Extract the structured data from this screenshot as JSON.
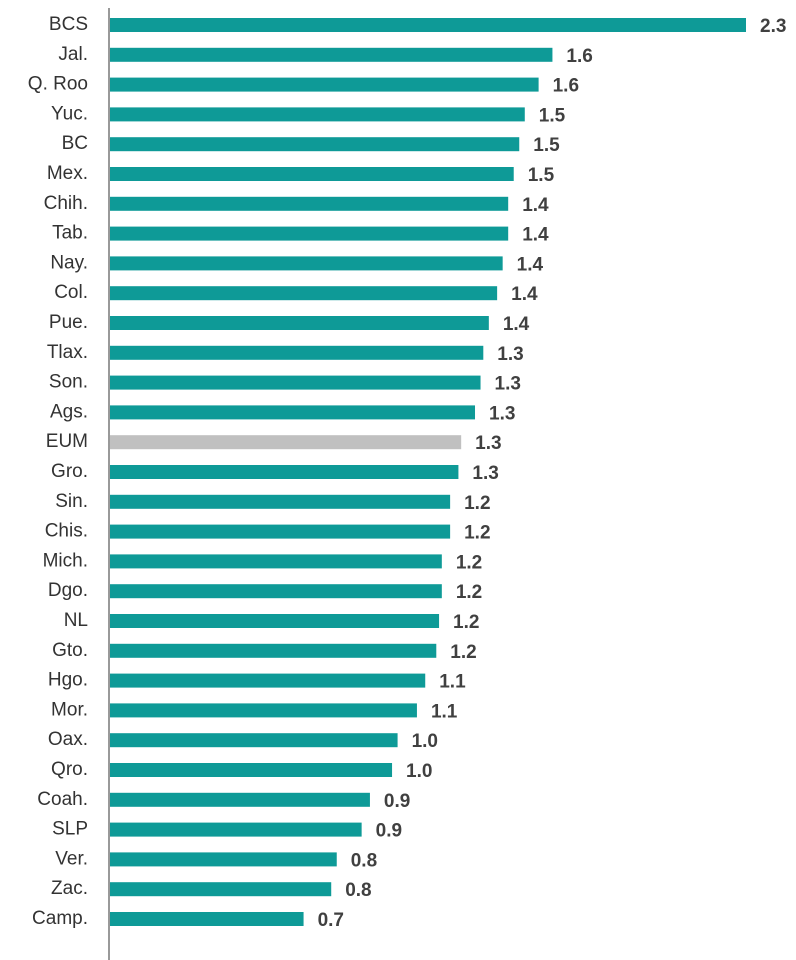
{
  "chart_data": {
    "type": "hbar",
    "categories": [
      "BCS",
      "Jal.",
      "Q. Roo",
      "Yuc.",
      "BC",
      "Mex.",
      "Chih.",
      "Tab.",
      "Nay.",
      "Col.",
      "Pue.",
      "Tlax.",
      "Son.",
      "Ags.",
      "EUM",
      "Gro.",
      "Sin.",
      "Chis.",
      "Mich.",
      "Dgo.",
      "NL",
      "Gto.",
      "Hgo.",
      "Mor.",
      "Oax.",
      "Qro.",
      "Coah.",
      "SLP",
      "Ver.",
      "Zac.",
      "Camp."
    ],
    "values": [
      2.3,
      1.6,
      1.55,
      1.5,
      1.48,
      1.46,
      1.44,
      1.44,
      1.42,
      1.4,
      1.37,
      1.35,
      1.34,
      1.32,
      1.27,
      1.26,
      1.23,
      1.23,
      1.2,
      1.2,
      1.19,
      1.18,
      1.14,
      1.11,
      1.04,
      1.02,
      0.94,
      0.91,
      0.82,
      0.8,
      0.7
    ],
    "value_labels": [
      "2.3",
      "1.6",
      "1.6",
      "1.5",
      "1.5",
      "1.5",
      "1.4",
      "1.4",
      "1.4",
      "1.4",
      "1.4",
      "1.3",
      "1.3",
      "1.3",
      "1.3",
      "1.3",
      "1.2",
      "1.2",
      "1.2",
      "1.2",
      "1.2",
      "1.2",
      "1.1",
      "1.1",
      "1.0",
      "1.0",
      "0.9",
      "0.9",
      "0.8",
      "0.8",
      "0.7"
    ],
    "colors": [
      "#0e9a97",
      "#0e9a97",
      "#0e9a97",
      "#0e9a97",
      "#0e9a97",
      "#0e9a97",
      "#0e9a97",
      "#0e9a97",
      "#0e9a97",
      "#0e9a97",
      "#0e9a97",
      "#0e9a97",
      "#0e9a97",
      "#0e9a97",
      "#c0c0c0",
      "#0e9a97",
      "#0e9a97",
      "#0e9a97",
      "#0e9a97",
      "#0e9a97",
      "#0e9a97",
      "#0e9a97",
      "#0e9a97",
      "#0e9a97",
      "#0e9a97",
      "#0e9a97",
      "#0e9a97",
      "#0e9a97",
      "#0e9a97",
      "#0e9a97",
      "#0e9a97"
    ],
    "xlim": [
      0,
      2.3
    ]
  }
}
